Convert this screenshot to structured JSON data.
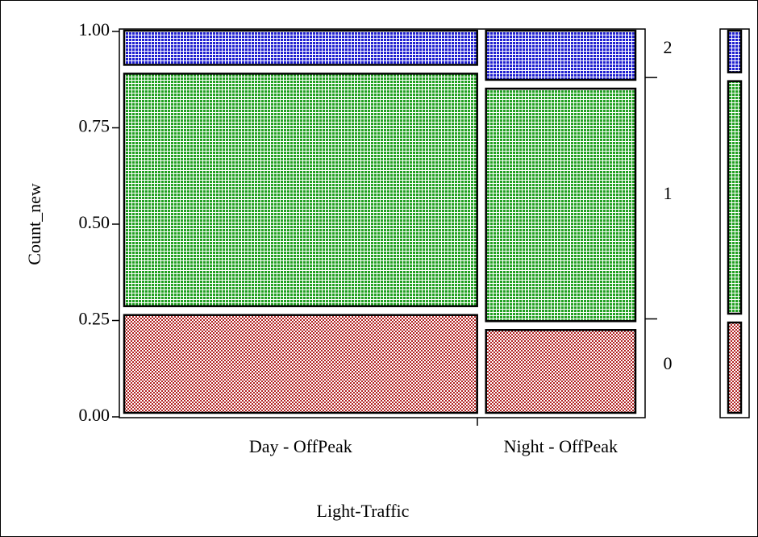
{
  "chart_data": {
    "type": "mosaic",
    "xlabel": "Light-Traffic",
    "ylabel": "Count_new",
    "categories": [
      "Day - OffPeak",
      "Night - OffPeak"
    ],
    "widths": [
      0.7,
      0.3
    ],
    "series": [
      {
        "name": "0",
        "color": "#b22222",
        "values": [
          0.27,
          0.23
        ],
        "total": 0.25
      },
      {
        "name": "1",
        "color": "#22a022",
        "values": [
          0.63,
          0.63
        ],
        "total": 0.63
      },
      {
        "name": "2",
        "color": "#2020d0",
        "values": [
          0.1,
          0.14
        ],
        "total": 0.12
      }
    ],
    "ylim": [
      0,
      1
    ],
    "yticks": [
      {
        "value": 0,
        "label": "0.00"
      },
      {
        "value": 0.25,
        "label": "0.25"
      },
      {
        "value": 0.5,
        "label": "0.50"
      },
      {
        "value": 0.75,
        "label": "0.75"
      },
      {
        "value": 1,
        "label": "1.00"
      }
    ]
  }
}
